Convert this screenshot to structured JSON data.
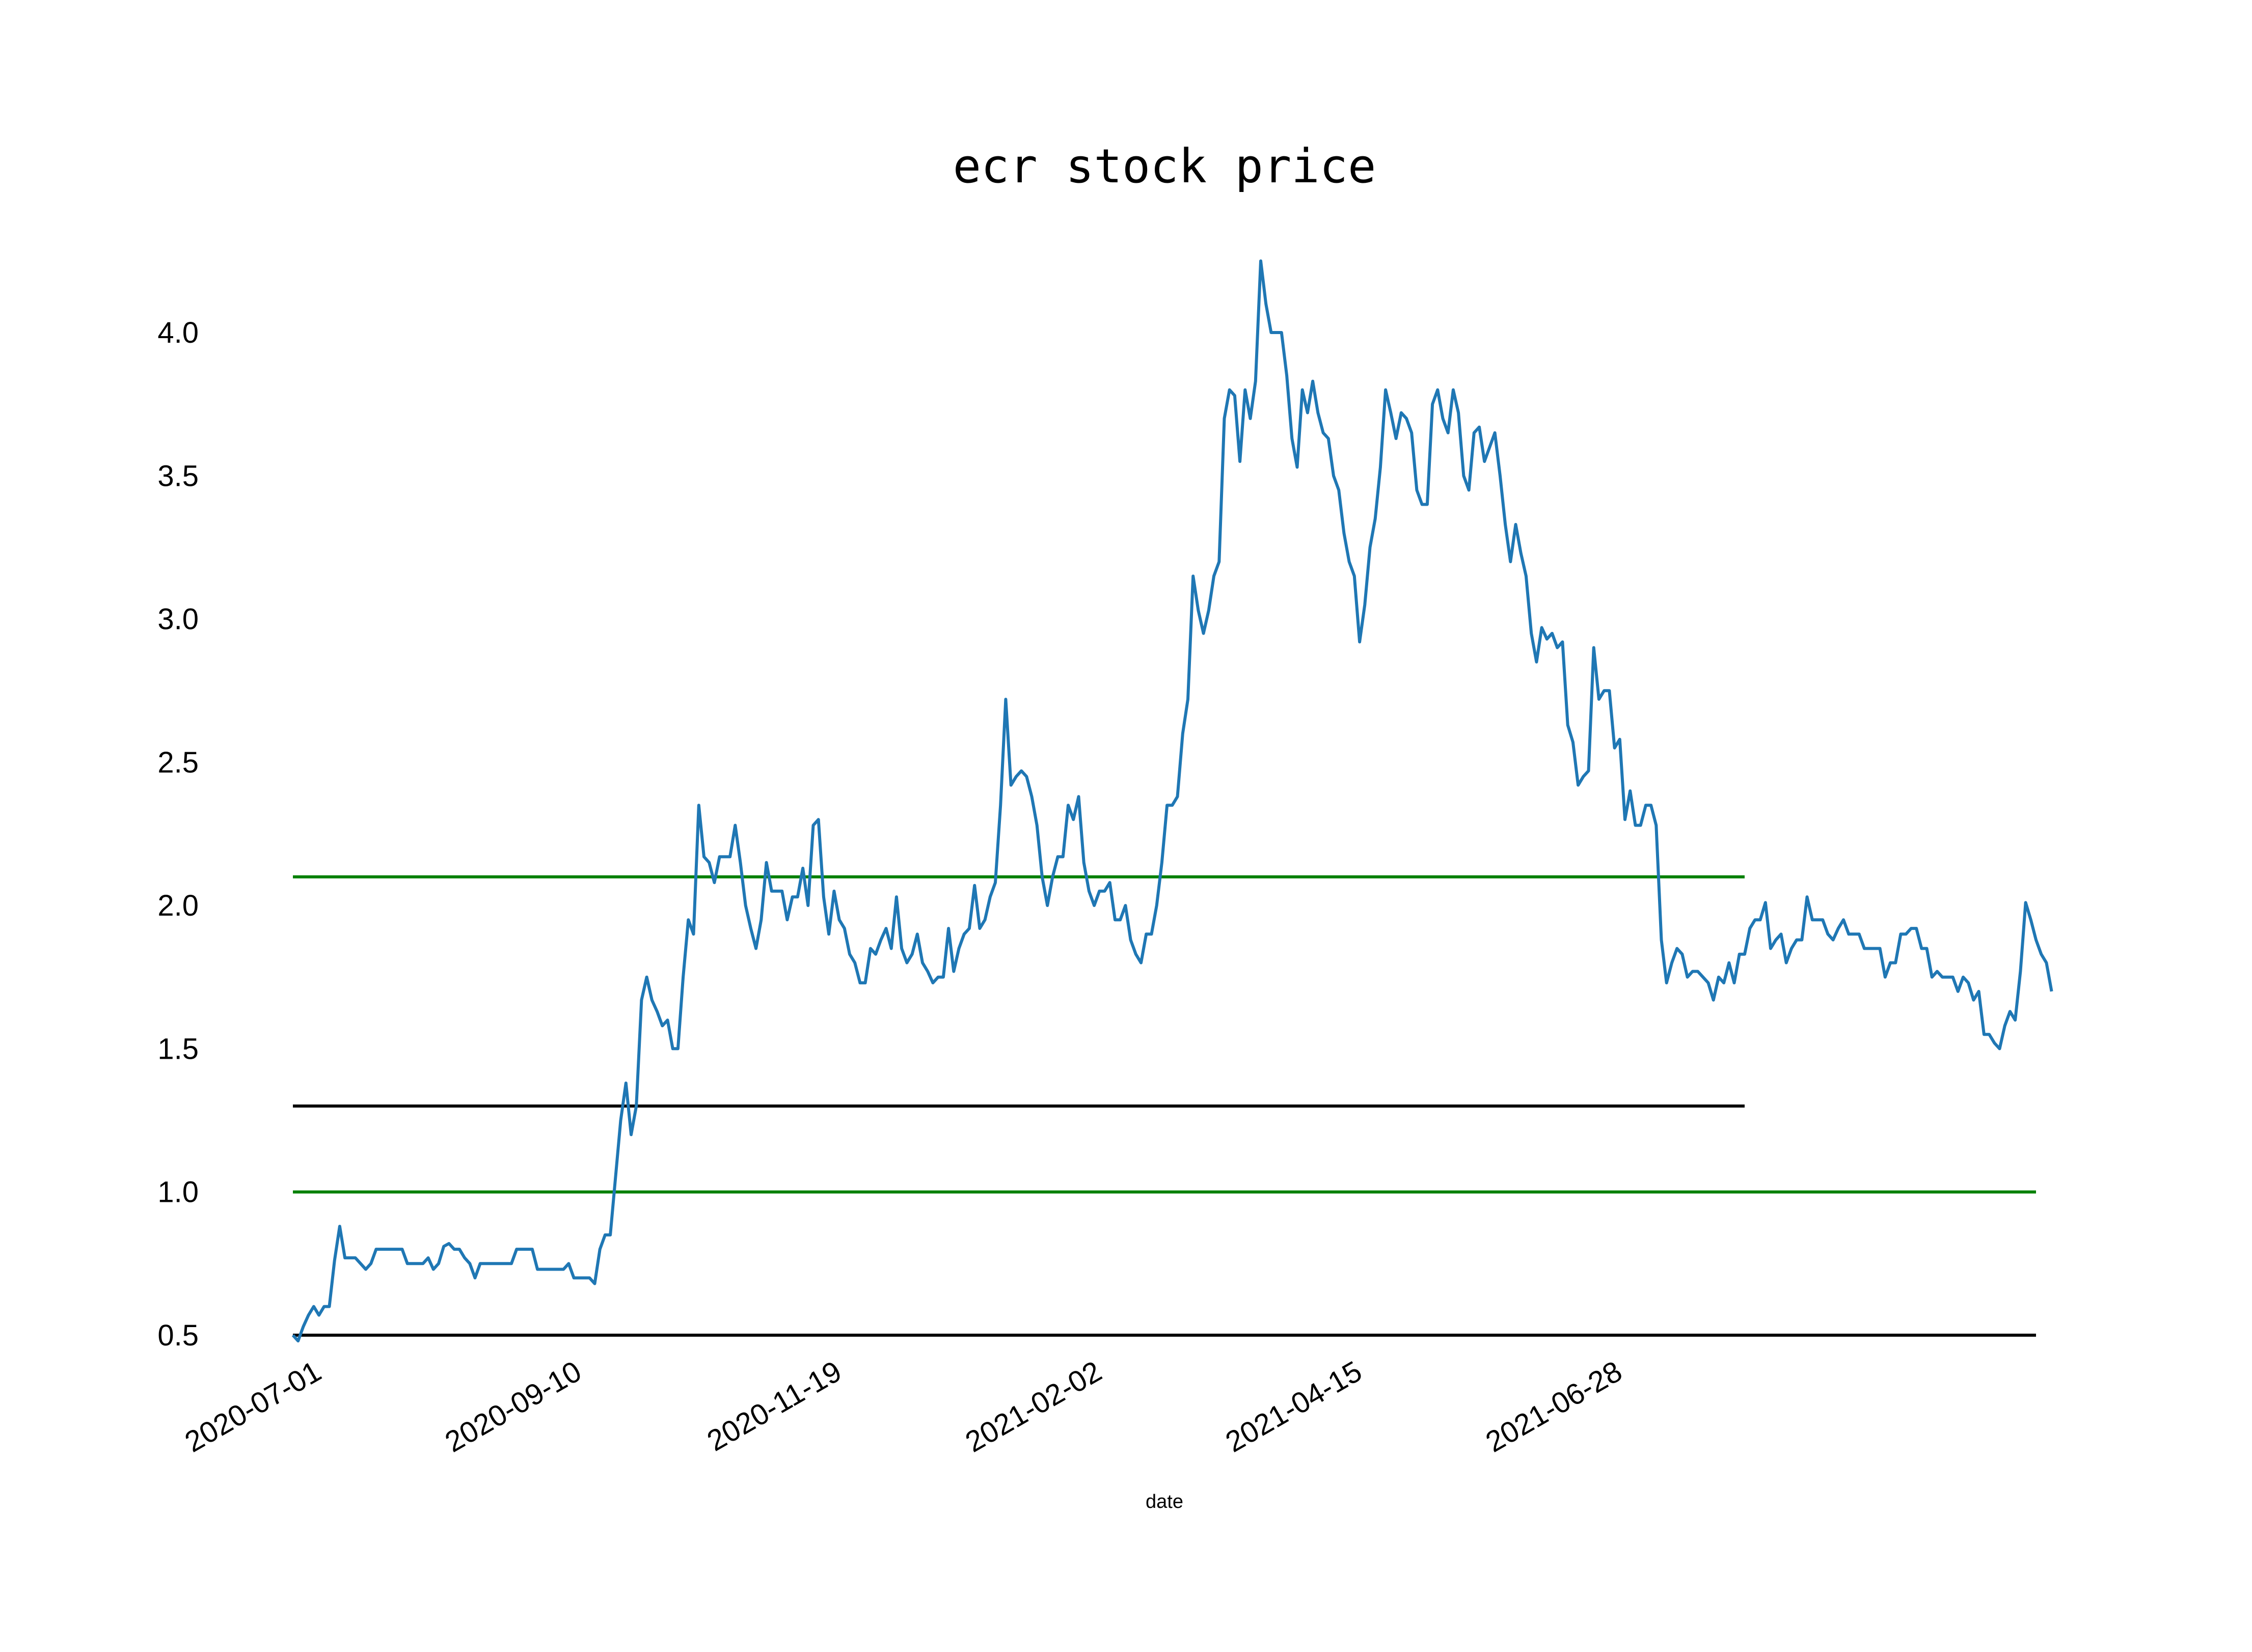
{
  "colors": {
    "price_line": "#1f77b4",
    "green_lines": "#008000",
    "black_lines": "#000000",
    "text": "#000000"
  },
  "chart_data": {
    "type": "line",
    "title": "ecr stock price",
    "xlabel": "date",
    "ylabel": "",
    "ylim": [
      0.45,
      4.32
    ],
    "y_ticks": [
      "0.5",
      "1.0",
      "1.5",
      "2.0",
      "2.5",
      "3.0",
      "3.5",
      "4.0"
    ],
    "x_ticks": [
      "2020-07-01",
      "2020-09-10",
      "2020-11-19",
      "2021-02-02",
      "2021-04-15",
      "2021-06-28"
    ],
    "grid": false,
    "n_points": 336,
    "series": [
      {
        "values": [
          0.5,
          0.48,
          0.53,
          0.57,
          0.6,
          0.57,
          0.6,
          0.6,
          0.76,
          0.88,
          0.77,
          0.77,
          0.77,
          0.75,
          0.73,
          0.75,
          0.8,
          0.8,
          0.8,
          0.8,
          0.8,
          0.8,
          0.75,
          0.75,
          0.75,
          0.75,
          0.77,
          0.73,
          0.75,
          0.81,
          0.82,
          0.8,
          0.8,
          0.77,
          0.75,
          0.7,
          0.75,
          0.75,
          0.75,
          0.75,
          0.75,
          0.75,
          0.75,
          0.8,
          0.8,
          0.8,
          0.8,
          0.73,
          0.73,
          0.73,
          0.73,
          0.73,
          0.73,
          0.75,
          0.7,
          0.7,
          0.7,
          0.7,
          0.68,
          0.8,
          0.85,
          0.85,
          1.05,
          1.25,
          1.38,
          1.2,
          1.3,
          1.67,
          1.75,
          1.67,
          1.63,
          1.58,
          1.6,
          1.5,
          1.5,
          1.75,
          1.95,
          1.9,
          2.35,
          2.17,
          2.15,
          2.08,
          2.17,
          2.17,
          2.17,
          2.28,
          2.15,
          2.0,
          1.92,
          1.85,
          1.95,
          2.15,
          2.05,
          2.05,
          2.05,
          1.95,
          2.03,
          2.03,
          2.13,
          2.0,
          2.28,
          2.3,
          2.03,
          1.9,
          2.05,
          1.95,
          1.92,
          1.83,
          1.8,
          1.73,
          1.73,
          1.85,
          1.83,
          1.88,
          1.92,
          1.85,
          2.03,
          1.85,
          1.8,
          1.83,
          1.9,
          1.8,
          1.77,
          1.73,
          1.75,
          1.75,
          1.92,
          1.77,
          1.85,
          1.9,
          1.92,
          2.07,
          1.92,
          1.95,
          2.03,
          2.08,
          2.35,
          2.72,
          2.42,
          2.45,
          2.47,
          2.45,
          2.38,
          2.28,
          2.1,
          2.0,
          2.1,
          2.17,
          2.17,
          2.35,
          2.3,
          2.38,
          2.15,
          2.05,
          2.0,
          2.05,
          2.05,
          2.08,
          1.95,
          1.95,
          2.0,
          1.88,
          1.83,
          1.8,
          1.9,
          1.9,
          2.0,
          2.15,
          2.35,
          2.35,
          2.38,
          2.6,
          2.72,
          3.15,
          3.03,
          2.95,
          3.03,
          3.15,
          3.2,
          3.7,
          3.8,
          3.78,
          3.55,
          3.8,
          3.7,
          3.83,
          4.25,
          4.1,
          4.0,
          4.0,
          4.0,
          3.85,
          3.63,
          3.53,
          3.8,
          3.72,
          3.83,
          3.72,
          3.65,
          3.63,
          3.5,
          3.45,
          3.3,
          3.2,
          3.15,
          2.92,
          3.05,
          3.25,
          3.35,
          3.53,
          3.8,
          3.72,
          3.63,
          3.72,
          3.7,
          3.65,
          3.45,
          3.4,
          3.4,
          3.75,
          3.8,
          3.7,
          3.65,
          3.8,
          3.72,
          3.5,
          3.45,
          3.65,
          3.67,
          3.55,
          3.6,
          3.65,
          3.5,
          3.33,
          3.2,
          3.33,
          3.23,
          3.15,
          2.95,
          2.85,
          2.97,
          2.93,
          2.95,
          2.9,
          2.92,
          2.63,
          2.57,
          2.42,
          2.45,
          2.47,
          2.9,
          2.72,
          2.75,
          2.75,
          2.55,
          2.58,
          2.3,
          2.4,
          2.28,
          2.28,
          2.35,
          2.35,
          2.28,
          1.88,
          1.73,
          1.8,
          1.85,
          1.83,
          1.75,
          1.77,
          1.77,
          1.75,
          1.73,
          1.67,
          1.75,
          1.73,
          1.8,
          1.73,
          1.83,
          1.83,
          1.92,
          1.95,
          1.95,
          2.01,
          1.85,
          1.88,
          1.9,
          1.8,
          1.85,
          1.88,
          1.88,
          2.03,
          1.95,
          1.95,
          1.95,
          1.9,
          1.88,
          1.92,
          1.95,
          1.9,
          1.9,
          1.9,
          1.85,
          1.85,
          1.85,
          1.85,
          1.75,
          1.8,
          1.8,
          1.9,
          1.9,
          1.92,
          1.92,
          1.85,
          1.85,
          1.75,
          1.77,
          1.75,
          1.75,
          1.75,
          1.7,
          1.75,
          1.73,
          1.67,
          1.7,
          1.55,
          1.55,
          1.52,
          1.5,
          1.58,
          1.63,
          1.6,
          1.77,
          2.01,
          1.95,
          1.88,
          1.83,
          1.8,
          1.7
        ]
      }
    ],
    "hlines": [
      {
        "y": 2.1,
        "color": "#008000",
        "x_end_index": 279
      },
      {
        "y": 1.3,
        "color": "#000000",
        "x_end_index": 279
      },
      {
        "y": 1.0,
        "color": "#008000",
        "x_end_index": 335
      },
      {
        "y": 0.5,
        "color": "#000000",
        "x_end_index": 335
      }
    ]
  }
}
